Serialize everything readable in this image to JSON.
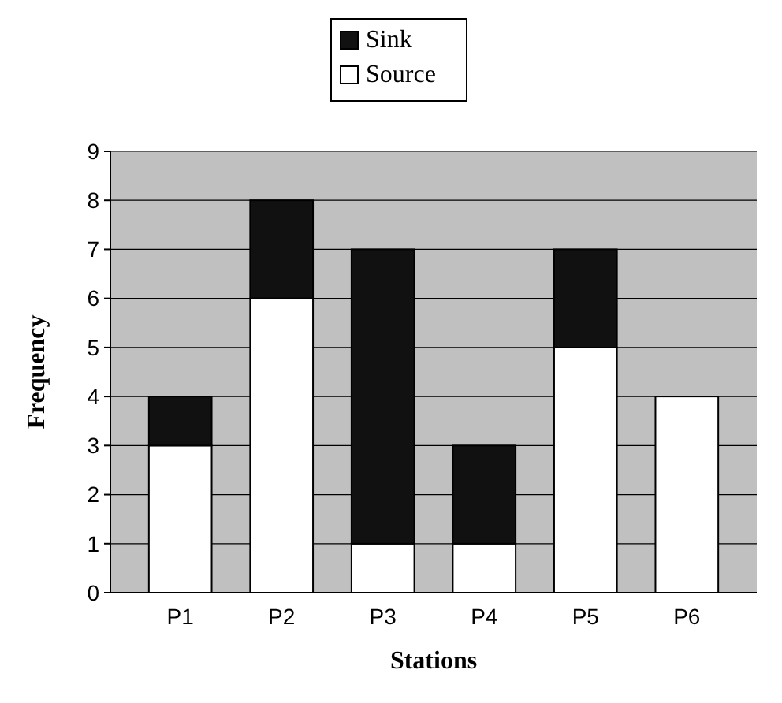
{
  "chart_data": {
    "type": "bar",
    "stacked": true,
    "xlabel": "Stations",
    "ylabel": "Frequency",
    "categories": [
      "P1",
      "P2",
      "P3",
      "P4",
      "P5",
      "P6"
    ],
    "series": [
      {
        "name": "Source",
        "color": "#ffffff",
        "values": [
          3,
          6,
          1,
          1,
          5,
          4
        ]
      },
      {
        "name": "Sink",
        "color": "#111111",
        "values": [
          1,
          2,
          6,
          2,
          2,
          0
        ]
      }
    ],
    "ylim": [
      0,
      9
    ],
    "yticks": [
      0,
      1,
      2,
      3,
      4,
      5,
      6,
      7,
      8,
      9
    ],
    "grid": "y",
    "legend": "top"
  }
}
